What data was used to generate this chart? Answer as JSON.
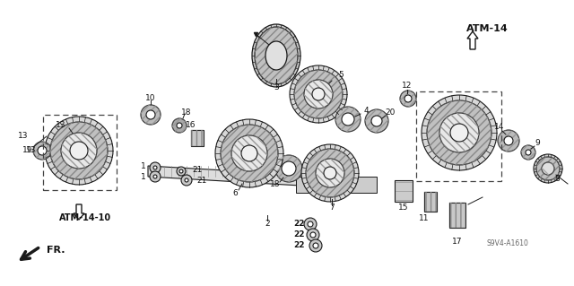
{
  "bg_color": "#ffffff",
  "lc": "#1a1a1a",
  "atm14_label": "ATM-14",
  "atm14_10_label": "ATM-14-10",
  "fr_label": "FR.",
  "diagram_code": "S9V4-A1610",
  "gear_fill": "#b0b0b0",
  "gear_hatch": "#555555",
  "washer_fill": "#888888"
}
